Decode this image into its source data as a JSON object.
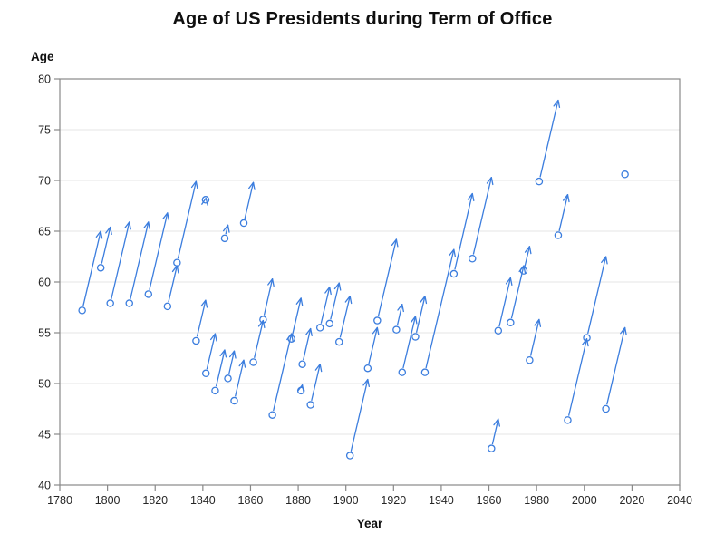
{
  "page": {
    "title": "Age of US Presidents during Term of Office"
  },
  "chart_data": {
    "type": "scatter",
    "subtype": "arrow-vectors-start-to-end-of-term",
    "title": "Age of US Presidents during Term of Office",
    "xlabel": "Year",
    "ylabel": "Age",
    "xlim": [
      1780,
      2040
    ],
    "ylim": [
      40,
      80
    ],
    "xticks": [
      1780,
      1800,
      1820,
      1840,
      1860,
      1880,
      1900,
      1920,
      1940,
      1960,
      1980,
      2000,
      2020,
      2040
    ],
    "yticks": [
      40,
      45,
      50,
      55,
      60,
      65,
      70,
      75,
      80
    ],
    "grid": "horizontal-only",
    "legend": "none",
    "marker": "open-circle-at-start-arrow-to-end",
    "colors": {
      "accent": "#3b7dde",
      "grid": "#e5e5e5",
      "frame": "#888888",
      "text": "#262626"
    },
    "arrows_x1_y1_x2_y2": [
      [
        1789.37,
        57.2,
        1797.17,
        65.0
      ],
      [
        1797.17,
        61.4,
        1801.17,
        65.4
      ],
      [
        1801.17,
        57.9,
        1809.17,
        65.9
      ],
      [
        1809.17,
        57.9,
        1817.17,
        65.9
      ],
      [
        1817.17,
        58.8,
        1825.17,
        66.8
      ],
      [
        1825.17,
        57.6,
        1829.17,
        61.6
      ],
      [
        1829.17,
        61.9,
        1837.17,
        69.9
      ],
      [
        1837.17,
        54.2,
        1841.17,
        58.2
      ],
      [
        1841.17,
        68.1,
        1841.28,
        68.25
      ],
      [
        1841.28,
        51.0,
        1845.17,
        54.9
      ],
      [
        1845.17,
        49.3,
        1849.17,
        53.3
      ],
      [
        1849.17,
        64.3,
        1850.52,
        65.6
      ],
      [
        1850.52,
        50.5,
        1853.17,
        53.2
      ],
      [
        1853.17,
        48.3,
        1857.17,
        52.3
      ],
      [
        1857.17,
        65.8,
        1861.17,
        69.8
      ],
      [
        1861.17,
        52.1,
        1865.29,
        56.2
      ],
      [
        1865.29,
        56.3,
        1869.17,
        60.3
      ],
      [
        1869.17,
        46.9,
        1877.17,
        54.9
      ],
      [
        1877.17,
        54.4,
        1881.17,
        58.4
      ],
      [
        1881.17,
        49.3,
        1881.72,
        49.85
      ],
      [
        1881.72,
        51.9,
        1885.17,
        55.4
      ],
      [
        1885.17,
        47.9,
        1889.17,
        51.9
      ],
      [
        1889.17,
        55.5,
        1893.17,
        59.5
      ],
      [
        1893.17,
        55.9,
        1897.17,
        59.9
      ],
      [
        1897.17,
        54.1,
        1901.71,
        58.6
      ],
      [
        1901.71,
        42.9,
        1909.17,
        50.4
      ],
      [
        1909.17,
        51.5,
        1913.17,
        55.5
      ],
      [
        1913.17,
        56.2,
        1921.17,
        64.2
      ],
      [
        1921.17,
        55.3,
        1923.6,
        57.8
      ],
      [
        1923.6,
        51.1,
        1929.17,
        56.6
      ],
      [
        1929.17,
        54.6,
        1933.17,
        58.6
      ],
      [
        1933.17,
        51.1,
        1945.29,
        63.2
      ],
      [
        1945.29,
        60.8,
        1953.05,
        68.7
      ],
      [
        1953.05,
        62.3,
        1961.05,
        70.3
      ],
      [
        1961.05,
        43.6,
        1963.9,
        46.5
      ],
      [
        1963.9,
        55.2,
        1969.05,
        60.4
      ],
      [
        1969.05,
        56.0,
        1974.6,
        61.6
      ],
      [
        1974.6,
        61.1,
        1977.05,
        63.5
      ],
      [
        1977.05,
        52.3,
        1981.05,
        56.3
      ],
      [
        1981.05,
        69.9,
        1989.05,
        77.9
      ],
      [
        1989.05,
        64.6,
        1993.05,
        68.6
      ],
      [
        1993.05,
        46.4,
        2001.05,
        54.4
      ],
      [
        2001.05,
        54.5,
        2009.05,
        62.5
      ],
      [
        2009.05,
        47.5,
        2017.05,
        55.5
      ]
    ],
    "lone_points_x_y": [
      [
        2017.05,
        70.6
      ]
    ]
  }
}
